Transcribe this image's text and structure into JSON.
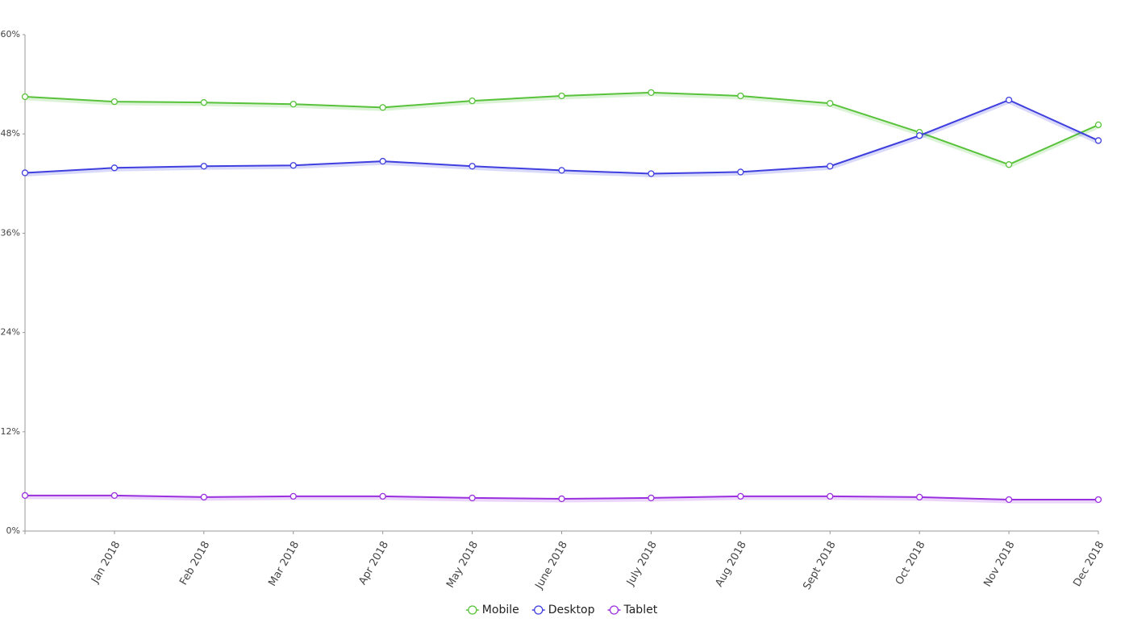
{
  "chart_data": {
    "type": "line",
    "categories": [
      null,
      "Jan 2018",
      "Feb 2018",
      "Mar 2018",
      "Apr 2018",
      "May 2018",
      "June 2018",
      "July 2018",
      "Aug 2018",
      "Sept 2018",
      "Oct 2018",
      "Nov 2018",
      "Dec 2018"
    ],
    "series": [
      {
        "name": "Mobile",
        "color": "#57c23a",
        "values": [
          52.5,
          51.9,
          51.8,
          51.6,
          51.2,
          52.0,
          52.6,
          53.0,
          52.6,
          51.7,
          48.2,
          44.3,
          49.1
        ]
      },
      {
        "name": "Desktop",
        "color": "#3f3fdf",
        "values": [
          43.3,
          43.9,
          44.1,
          44.2,
          44.7,
          44.1,
          43.6,
          43.2,
          43.4,
          44.1,
          47.8,
          52.1,
          47.2
        ]
      },
      {
        "name": "Tablet",
        "color": "#9a2fe0",
        "values": [
          4.3,
          4.3,
          4.1,
          4.2,
          4.2,
          4.0,
          3.9,
          4.0,
          4.2,
          4.2,
          4.1,
          3.8,
          3.8
        ]
      }
    ],
    "ylim": [
      0,
      60
    ],
    "yticks": [
      {
        "value": 0,
        "label": "0%"
      },
      {
        "value": 12,
        "label": "12%"
      },
      {
        "value": 24,
        "label": "24%"
      },
      {
        "value": 36,
        "label": "36%"
      },
      {
        "value": 48,
        "label": "48%"
      },
      {
        "value": 60,
        "label": "60%"
      }
    ],
    "grid": false,
    "legend": "bottom"
  }
}
